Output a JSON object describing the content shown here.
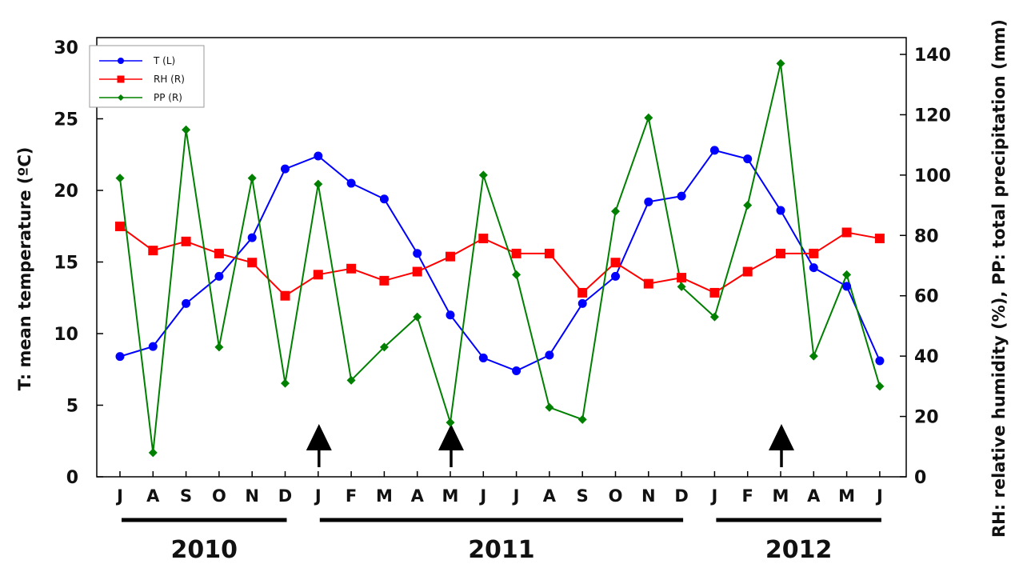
{
  "chart_data": {
    "type": "line",
    "categories": [
      "J",
      "A",
      "S",
      "O",
      "N",
      "D",
      "J",
      "F",
      "M",
      "A",
      "M",
      "J",
      "J",
      "A",
      "S",
      "O",
      "N",
      "D",
      "J",
      "F",
      "M",
      "A",
      "M",
      "J"
    ],
    "y_left": {
      "label": "T: mean temperature (ºC)",
      "lim": [
        0,
        30
      ],
      "ticks": [
        "0",
        "5",
        "10",
        "15",
        "20",
        "25",
        "30"
      ]
    },
    "y_right": {
      "label": "RH: relative humidity (%), PP: total precipitation (mm)",
      "lim": [
        0,
        140
      ],
      "ticks": [
        "0",
        "20",
        "40",
        "60",
        "80",
        "100",
        "120",
        "140"
      ]
    },
    "series": [
      {
        "name": "T (L)",
        "axis": "left",
        "color": "#0000ff",
        "marker": "circle",
        "values": [
          8.4,
          9.1,
          12.1,
          14.0,
          16.7,
          21.5,
          22.4,
          20.5,
          19.4,
          15.6,
          11.3,
          8.3,
          7.4,
          8.5,
          12.1,
          14.0,
          19.2,
          19.6,
          22.8,
          22.2,
          18.6,
          14.6,
          13.3,
          8.1
        ]
      },
      {
        "name": "RH (R)",
        "axis": "right",
        "color": "#ff0000",
        "marker": "square",
        "values": [
          83,
          75,
          78,
          74,
          71,
          60,
          67,
          69,
          65,
          68,
          73,
          79,
          74,
          74,
          61,
          71,
          64,
          66,
          61,
          68,
          74,
          74,
          81,
          79
        ]
      },
      {
        "name": "PP (R)",
        "axis": "right",
        "color": "#008000",
        "marker": "diamond",
        "values": [
          99,
          8,
          115,
          43,
          99,
          31,
          97,
          32,
          43,
          53,
          18,
          100,
          67,
          23,
          19,
          88,
          119,
          63,
          53,
          90,
          137,
          40,
          67,
          30
        ]
      }
    ],
    "years": [
      {
        "label": "2010",
        "from": 0,
        "to": 5
      },
      {
        "label": "2011",
        "from": 6,
        "to": 17
      },
      {
        "label": "2012",
        "from": 18,
        "to": 23
      }
    ],
    "arrows_at": [
      6,
      10,
      20
    ],
    "legend": "top-left",
    "grid": false
  }
}
